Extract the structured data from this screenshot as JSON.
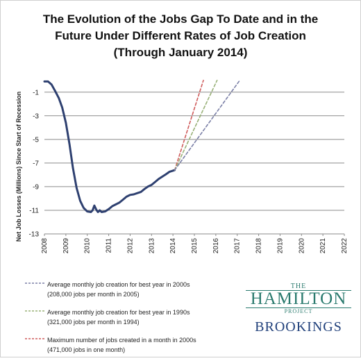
{
  "title_lines": [
    "The Evolution of the Jobs Gap To Date and in the",
    "Future Under Different Rates of Job Creation",
    "(Through January 2014)"
  ],
  "chart_data": {
    "type": "line",
    "ylabel": "Net Job Losses (Millions) Since Start of Recession",
    "xlabel": "",
    "x_range": [
      2008,
      2022
    ],
    "ylim": [
      -13,
      0
    ],
    "y_ticks": [
      -1,
      -3,
      -5,
      -7,
      -9,
      -11,
      -13
    ],
    "x_ticks": [
      "2008",
      "2009",
      "2010",
      "2011",
      "2012",
      "2013",
      "2014",
      "2015",
      "2016",
      "2017",
      "2018",
      "2019",
      "2020",
      "2021",
      "2022"
    ],
    "grid": true,
    "colors": {
      "actual": "#2e4070",
      "best2000s": "#7a7fa6",
      "best1990s": "#98b077",
      "max2000s": "#cf5b5b",
      "grid": "#8a8a8a"
    },
    "series": [
      {
        "key": "actual",
        "style": "solid",
        "x": [
          2008.0,
          2008.17,
          2008.33,
          2008.5,
          2008.67,
          2008.83,
          2009.0,
          2009.17,
          2009.33,
          2009.5,
          2009.67,
          2009.83,
          2010.0,
          2010.17,
          2010.25,
          2010.33,
          2010.42,
          2010.5,
          2010.58,
          2010.67,
          2010.83,
          2011.0,
          2011.17,
          2011.33,
          2011.5,
          2011.67,
          2011.83,
          2012.0,
          2012.17,
          2012.33,
          2012.5,
          2012.67,
          2012.83,
          2013.0,
          2013.17,
          2013.33,
          2013.5,
          2013.67,
          2013.83,
          2014.0,
          2014.08
        ],
        "values": [
          -0.1,
          -0.1,
          -0.35,
          -0.9,
          -1.5,
          -2.3,
          -3.6,
          -5.4,
          -7.4,
          -9.1,
          -10.2,
          -10.8,
          -11.1,
          -11.15,
          -11.0,
          -10.6,
          -10.95,
          -11.15,
          -11.0,
          -11.15,
          -11.1,
          -10.9,
          -10.65,
          -10.5,
          -10.35,
          -10.1,
          -9.85,
          -9.7,
          -9.65,
          -9.55,
          -9.45,
          -9.2,
          -9.0,
          -8.85,
          -8.6,
          -8.35,
          -8.15,
          -7.95,
          -7.75,
          -7.65,
          -7.6
        ]
      },
      {
        "key": "max2000s",
        "name": "Maximum number of jobs created in a month in 2000s (471,000 jobs in one month)",
        "style": "dashed",
        "x": [
          2014.08,
          2015.42
        ],
        "values": [
          -7.6,
          0
        ]
      },
      {
        "key": "best1990s",
        "name": "Average monthly job creation for best year in 1990s (321,000 jobs per month in 1994)",
        "style": "dashed",
        "x": [
          2014.08,
          2016.06
        ],
        "values": [
          -7.6,
          0
        ]
      },
      {
        "key": "best2000s",
        "name": "Average monthly job creation for best year in 2000s (208,000 jobs per month in 2005)",
        "style": "dashed",
        "x": [
          2014.08,
          2017.12
        ],
        "values": [
          -7.6,
          0
        ]
      }
    ]
  },
  "legend": [
    {
      "key": "best2000s",
      "line1": "Average monthly job creation for best year in 2000s",
      "line2": "(208,000 jobs per month in 2005)"
    },
    {
      "key": "best1990s",
      "line1": "Average monthly job creation for best year in 1990s",
      "line2": "(321,000 jobs per month in 1994)"
    },
    {
      "key": "max2000s",
      "line1": "Maximum number of jobs created in a month in 2000s",
      "line2": "(471,000 jobs in one month)"
    }
  ],
  "logo": {
    "the": "THE",
    "hamilton": "HAMILTON",
    "project": "PROJECT",
    "brookings": "BROOKINGS"
  }
}
